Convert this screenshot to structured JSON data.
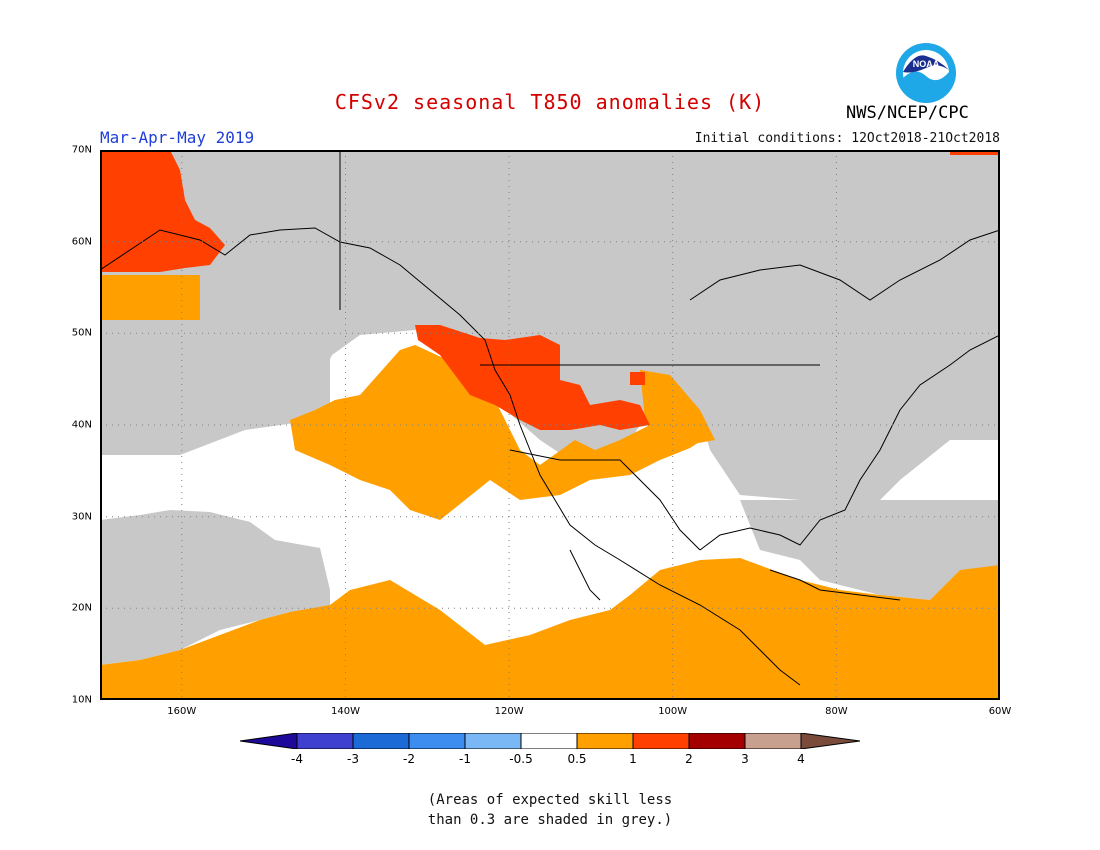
{
  "title": "CFSv2 seasonal T850 anomalies (K)",
  "season": "Mar-Apr-May 2019",
  "initial_conditions": "Initial conditions: 12Oct2018-21Oct2018",
  "agency": "NWS/NCEP/CPC",
  "logo_text": "NOAA",
  "map": {
    "lat_labels": [
      "70N",
      "60N",
      "50N",
      "40N",
      "30N",
      "20N",
      "10N"
    ],
    "lon_labels": [
      "160W",
      "140W",
      "120W",
      "100W",
      "80W",
      "60W"
    ],
    "colors": {
      "low_skill_grey": "#c8c8c8",
      "neutral_white": "#ffffff",
      "warm_0_5_to_1": "#ff9f00",
      "warm_1_to_2": "#ff4000",
      "coast": "#000000"
    }
  },
  "colorbar": {
    "labels": [
      "-4",
      "-3",
      "-2",
      "-1",
      "-0.5",
      "0.5",
      "1",
      "2",
      "3",
      "4"
    ],
    "colors": [
      "#1e0a9a",
      "#4040d0",
      "#1c6ad6",
      "#3d8cf0",
      "#7ab8f5",
      "#ffffff",
      "#ff9f00",
      "#ff4000",
      "#a50000",
      "#c8a090",
      "#7a4a3a"
    ]
  },
  "note_lines": [
    "(Areas of expected skill less",
    "than 0.3 are shaded in grey.)"
  ]
}
